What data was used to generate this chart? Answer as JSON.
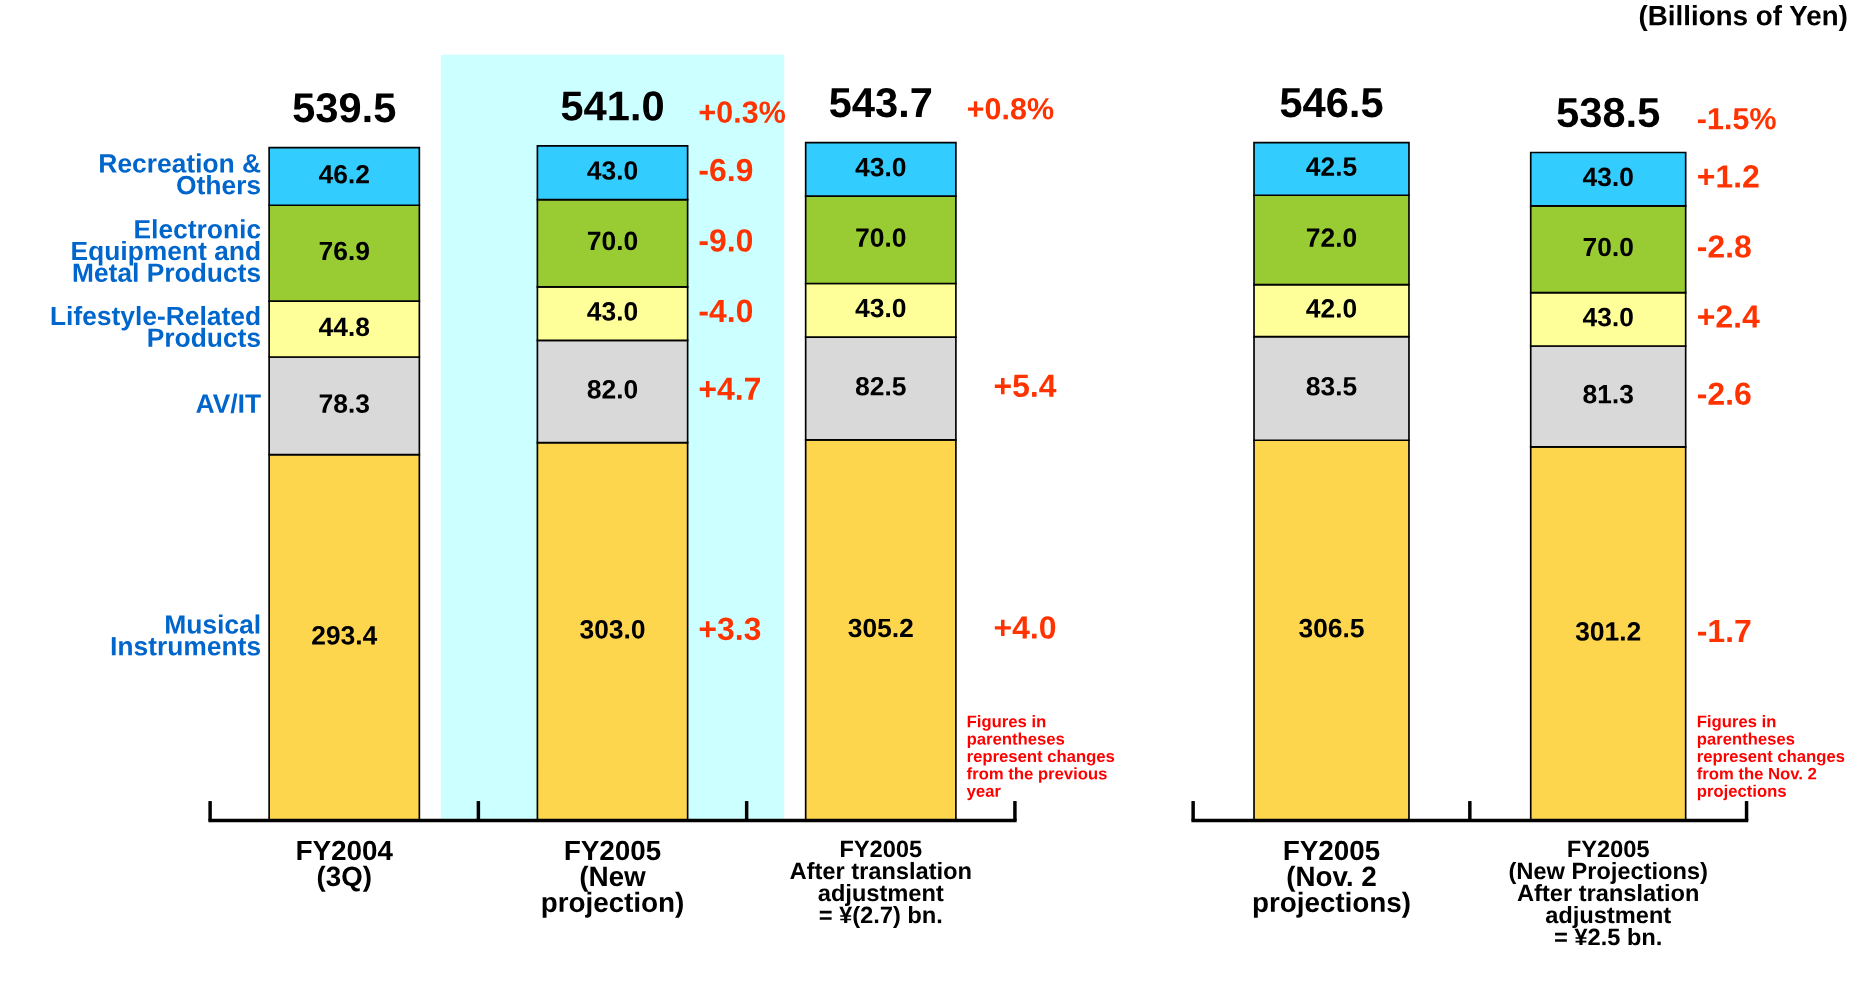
{
  "chart_data": [
    {
      "type": "bar",
      "stacked": true,
      "legend": "left",
      "grid": false,
      "categories": [
        "FY2004\n(3Q)",
        "FY2005\n(New\nprojection)",
        "FY2005\nAfter translation\nadjustment\n= ¥(2.7) bn."
      ],
      "series": [
        {
          "name": "Musical\nInstruments",
          "color": "#fdd64e",
          "values": [
            293.4,
            303.0,
            305.2
          ],
          "value_labels": [
            "293.4",
            "303.0",
            "305.2"
          ]
        },
        {
          "name": "AV/IT",
          "color": "#d9d9d9",
          "values": [
            78.3,
            82.0,
            82.5
          ],
          "value_labels": [
            "78.3",
            "82.0",
            "82.5"
          ]
        },
        {
          "name": "Lifestyle-Related\nProducts",
          "color": "#ffff99",
          "values": [
            44.8,
            43.0,
            43.0
          ],
          "value_labels": [
            "44.8",
            "43.0",
            "43.0"
          ]
        },
        {
          "name": "Electronic\nEquipment and\nMetal Products",
          "color": "#99cc33",
          "values": [
            76.9,
            70.0,
            70.0
          ],
          "value_labels": [
            "76.9",
            "70.0",
            "70.0"
          ]
        },
        {
          "name": "Recreation &\nOthers",
          "color": "#33ccff",
          "values": [
            46.2,
            43.0,
            43.0
          ],
          "value_labels": [
            "46.2",
            "43.0",
            "43.0"
          ]
        }
      ],
      "totals": [
        "539.5",
        "541.0",
        "543.7"
      ],
      "annotations": [
        "+0.3%",
        "+0.8%",
        "-6.9",
        "-9.0",
        "-4.0",
        "+4.7",
        "+3.3",
        "+5.4",
        "+4.0",
        "Figures in\nparentheses\nrepresent changes\nfrom the previous\nyear"
      ]
    },
    {
      "type": "bar",
      "stacked": true,
      "grid": false,
      "subtitle": "(Billions of Yen)",
      "categories": [
        "FY2005\n(Nov. 2\nprojections)",
        "FY2005\n(New Projections)\nAfter translation\nadjustment\n= ¥2.5 bn."
      ],
      "series": [
        {
          "color": "#fdd64e",
          "values": [
            306.5,
            301.2
          ],
          "value_labels": [
            "306.5",
            "301.2"
          ]
        },
        {
          "color": "#d9d9d9",
          "values": [
            83.5,
            81.3
          ],
          "value_labels": [
            "83.5",
            "81.3"
          ]
        },
        {
          "color": "#ffff99",
          "values": [
            42.0,
            43.0
          ],
          "value_labels": [
            "42.0",
            "43.0"
          ]
        },
        {
          "color": "#99cc33",
          "values": [
            72.0,
            70.0
          ],
          "value_labels": [
            "72.0",
            "70.0"
          ]
        },
        {
          "color": "#33ccff",
          "values": [
            42.5,
            43.0
          ],
          "value_labels": [
            "42.5",
            "43.0"
          ]
        }
      ],
      "totals": [
        "546.5",
        "538.5"
      ],
      "annotations": [
        "-1.5%",
        "+1.2",
        "-2.8",
        "+2.4",
        "-2.6",
        "-1.7",
        "Figures in\nparentheses\nrepresent changes\nfrom the Nov. 2\nprojections"
      ]
    }
  ]
}
